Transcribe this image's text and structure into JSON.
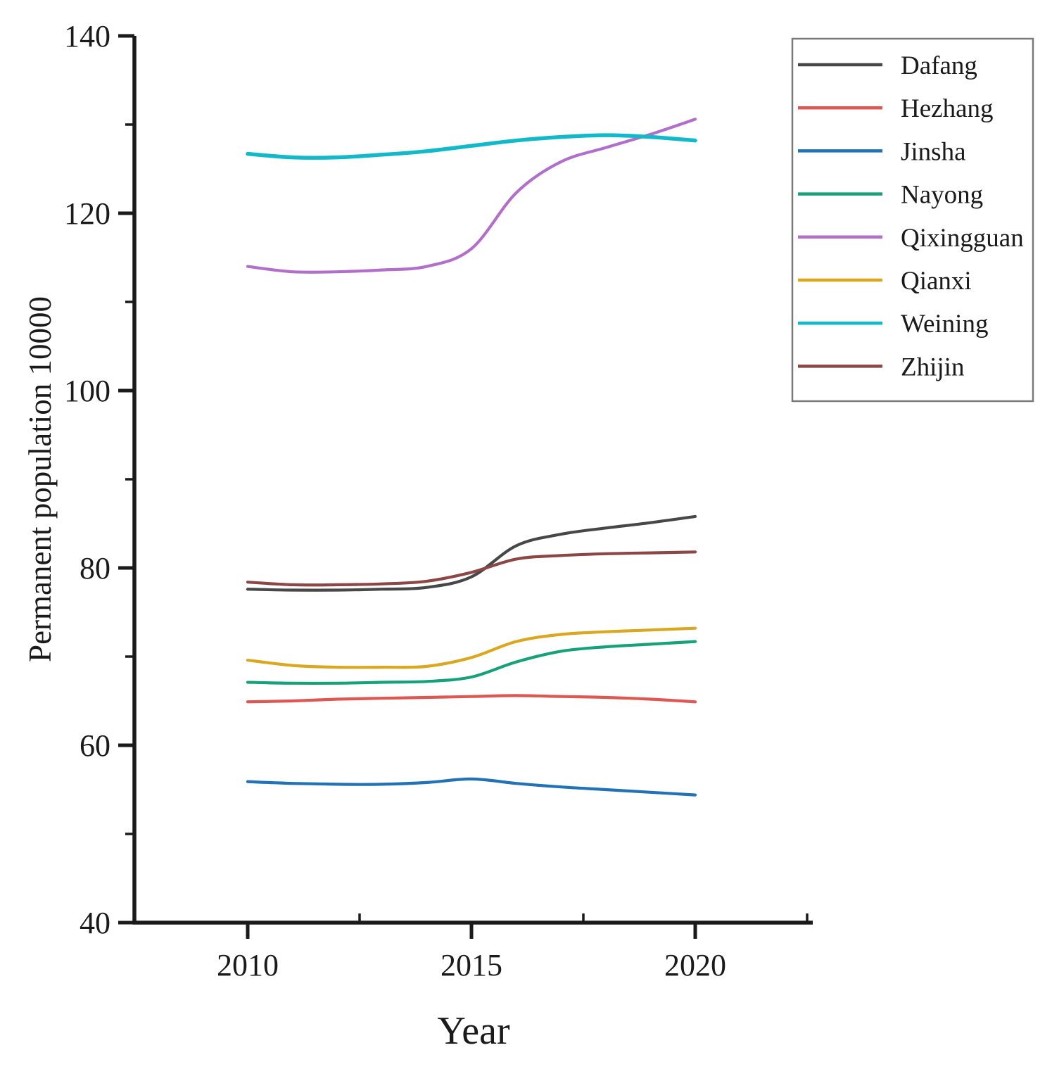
{
  "figure": {
    "x_axis_title": "Year",
    "y_axis_title": "Permanent population 10000"
  },
  "colors": {
    "axis": "#1a1a1a",
    "legend_border": "#7a7a7a",
    "background": "#ffffff"
  },
  "chart_data": {
    "type": "line",
    "title": "",
    "xlabel": "Year",
    "ylabel": "Permanent population 10000",
    "x": [
      2010,
      2011,
      2012,
      2013,
      2014,
      2015,
      2016,
      2017,
      2018,
      2019,
      2020
    ],
    "xlim": [
      2007.45,
      2022.65
    ],
    "ylim": [
      40,
      140
    ],
    "x_major_ticks": [
      2010,
      2015,
      2020
    ],
    "x_minor_ticks": [
      2012.5,
      2017.5,
      2022.5
    ],
    "y_major_ticks": [
      140,
      120,
      100,
      80,
      60,
      40
    ],
    "y_minor_ticks": [
      130,
      110,
      90,
      70,
      50
    ],
    "grid": false,
    "legend_position": "upper-right",
    "series": [
      {
        "name": "Dafang",
        "color": "#474747",
        "width": 4.2,
        "values": [
          77.6,
          77.5,
          77.5,
          77.6,
          77.8,
          79.0,
          82.5,
          83.8,
          84.5,
          85.1,
          85.8
        ]
      },
      {
        "name": "Hezhang",
        "color": "#dd5853",
        "width": 4.2,
        "values": [
          64.9,
          65.0,
          65.2,
          65.3,
          65.4,
          65.5,
          65.6,
          65.5,
          65.4,
          65.2,
          64.9
        ]
      },
      {
        "name": "Jinsha",
        "color": "#2272b5",
        "width": 4.2,
        "values": [
          55.9,
          55.7,
          55.6,
          55.6,
          55.8,
          56.2,
          55.7,
          55.3,
          55.0,
          54.7,
          54.4
        ]
      },
      {
        "name": "Nayong",
        "color": "#16a179",
        "width": 4.2,
        "values": [
          67.1,
          67.0,
          67.0,
          67.1,
          67.2,
          67.7,
          69.4,
          70.6,
          71.1,
          71.4,
          71.7
        ]
      },
      {
        "name": "Qixingguan",
        "color": "#b26fca",
        "width": 4.2,
        "values": [
          114.0,
          113.4,
          113.4,
          113.6,
          114.0,
          116.0,
          122.3,
          125.8,
          127.4,
          128.9,
          130.6
        ]
      },
      {
        "name": "Qianxi",
        "color": "#d9a820",
        "width": 4.2,
        "values": [
          69.6,
          69.0,
          68.8,
          68.8,
          68.9,
          69.9,
          71.7,
          72.5,
          72.8,
          73.0,
          73.2
        ]
      },
      {
        "name": "Weining",
        "color": "#12bac9",
        "width": 5.5,
        "values": [
          126.7,
          126.3,
          126.3,
          126.6,
          127.0,
          127.6,
          128.2,
          128.6,
          128.8,
          128.6,
          128.2
        ]
      },
      {
        "name": "Zhijin",
        "color": "#8c4646",
        "width": 4.2,
        "values": [
          78.4,
          78.1,
          78.1,
          78.2,
          78.5,
          79.5,
          81.0,
          81.4,
          81.6,
          81.7,
          81.8
        ]
      }
    ]
  }
}
